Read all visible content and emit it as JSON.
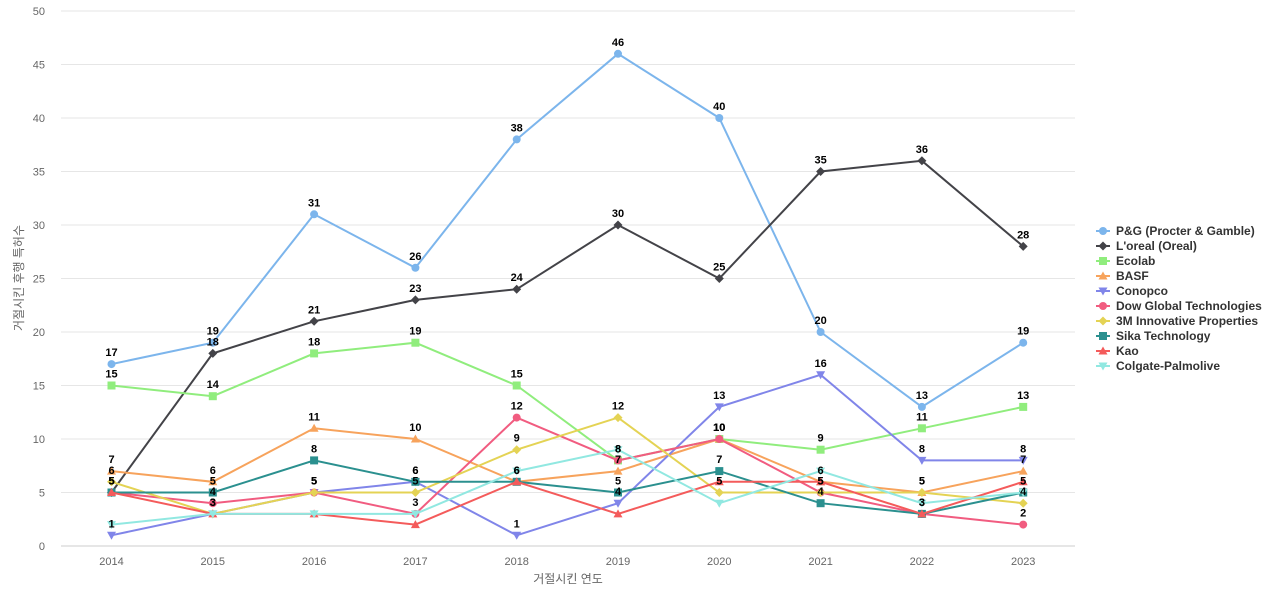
{
  "chart_data": {
    "type": "line",
    "xlabel": "거절시킨 연도",
    "ylabel": "거절시킨 후행 특허수",
    "x": [
      "2014",
      "2015",
      "2016",
      "2017",
      "2018",
      "2019",
      "2020",
      "2021",
      "2022",
      "2023"
    ],
    "ylim": [
      0,
      50
    ],
    "yticks": [
      0,
      5,
      10,
      15,
      20,
      25,
      30,
      35,
      40,
      45,
      50
    ],
    "grid": true,
    "legend_position": "right",
    "series": [
      {
        "name": "P&G (Procter & Gamble)",
        "color": "#7cb5ec",
        "marker": "circle",
        "values": [
          17,
          19,
          31,
          26,
          38,
          46,
          40,
          20,
          13,
          19
        ],
        "show_labels": true
      },
      {
        "name": "L'oreal (Oreal)",
        "color": "#434348",
        "marker": "diamond",
        "values": [
          5,
          18,
          21,
          23,
          24,
          30,
          25,
          35,
          36,
          28
        ],
        "show_labels": true
      },
      {
        "name": "Ecolab",
        "color": "#90ed7d",
        "marker": "square",
        "values": [
          15,
          14,
          18,
          19,
          15,
          8,
          10,
          9,
          11,
          13
        ],
        "show_labels": true
      },
      {
        "name": "BASF",
        "color": "#f7a35c",
        "marker": "triangle",
        "values": [
          7,
          6,
          11,
          10,
          6,
          7,
          10,
          6,
          5,
          7
        ],
        "show_labels": true
      },
      {
        "name": "Conopco",
        "color": "#8085e9",
        "marker": "triangle-down",
        "values": [
          1,
          3,
          5,
          6,
          1,
          4,
          13,
          16,
          8,
          8
        ],
        "show_labels": true
      },
      {
        "name": "Dow Global Technologies",
        "color": "#f15c80",
        "marker": "circle",
        "values": [
          5,
          4,
          5,
          3,
          12,
          8,
          10,
          5,
          3,
          2
        ],
        "show_labels": true
      },
      {
        "name": "3M Innovative Properties",
        "color": "#e4d354",
        "marker": "diamond",
        "values": [
          6,
          3,
          5,
          5,
          9,
          12,
          5,
          5,
          5,
          4
        ],
        "show_labels": true
      },
      {
        "name": "Sika Technology",
        "color": "#2b908f",
        "marker": "square",
        "values": [
          5,
          5,
          8,
          6,
          6,
          5,
          7,
          4,
          3,
          5
        ],
        "show_labels": true
      },
      {
        "name": "Kao",
        "color": "#f45b5b",
        "marker": "triangle",
        "values": [
          5,
          3,
          3,
          2,
          6,
          3,
          6,
          6,
          3,
          6
        ],
        "show_labels": false
      },
      {
        "name": "Colgate-Palmolive",
        "color": "#91e8e1",
        "marker": "triangle-down",
        "values": [
          2,
          3,
          3,
          3,
          7,
          9,
          4,
          7,
          4,
          5
        ],
        "show_labels": false
      }
    ]
  }
}
